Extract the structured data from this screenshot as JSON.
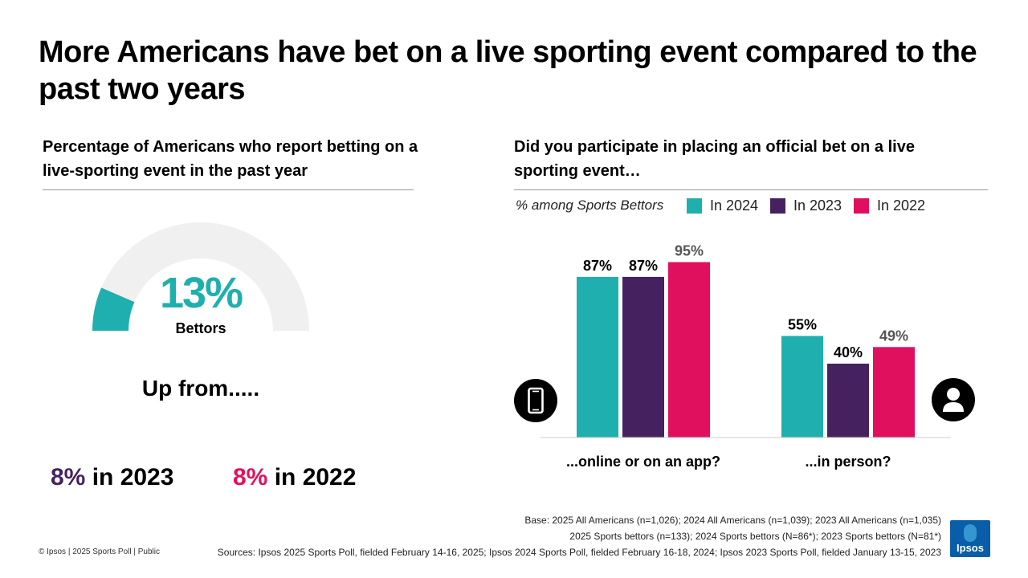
{
  "title": "More Americans have bet on a live sporting event compared to the past two years",
  "left_panel": {
    "subtitle": "Percentage of Americans who report betting on a live-sporting event in the past year",
    "gauge_value": "13%",
    "gauge_fraction": 0.13,
    "gauge_label": "Bettors",
    "up_from": "Up from.....",
    "prior_2023_pct": "8%",
    "prior_2023_text": " in 2023",
    "prior_2022_pct": "8%",
    "prior_2022_text": " in 2022"
  },
  "right_panel": {
    "subtitle": "Did you participate in placing an official bet on a live sporting event…",
    "legend_note": "% among Sports Bettors"
  },
  "icons": {
    "online": "smartphone-icon",
    "in_person": "person-icon"
  },
  "colors": {
    "teal": "#1FAFAF",
    "purple": "#45225F",
    "magenta": "#E0105F"
  },
  "chart_data": {
    "type": "bar",
    "categories": [
      "...online or on an app?",
      "...in person?"
    ],
    "series": [
      {
        "name": "In 2024",
        "values": [
          87,
          55
        ],
        "color": "#1FAFAF",
        "label_color": "#000000"
      },
      {
        "name": "In 2023",
        "values": [
          87,
          40
        ],
        "color": "#45225F",
        "label_color": "#000000"
      },
      {
        "name": "In 2022",
        "values": [
          95,
          49
        ],
        "color": "#E0105F",
        "label_color": "#555555"
      }
    ],
    "value_suffix": "%",
    "ylim": [
      0,
      100
    ]
  },
  "footer": {
    "copyright": "© Ipsos | 2025 Sports Poll | Public",
    "base_line_1": "Base: 2025 All Americans (n=1,026); 2024 All Americans (n=1,039); 2023 All Americans (n=1,035)",
    "base_line_2": "2025 Sports bettors (n=133); 2024 Sports bettors (N=86*); 2023 Sports bettors (N=81*)",
    "sources": "Sources: Ipsos 2025 Sports Poll, fielded February 14-16, 2025; Ipsos 2024 Sports Poll, fielded February 16-18, 2024; Ipsos 2023 Sports Poll, fielded January 13-15, 2023",
    "logo_text": "Ipsos"
  }
}
